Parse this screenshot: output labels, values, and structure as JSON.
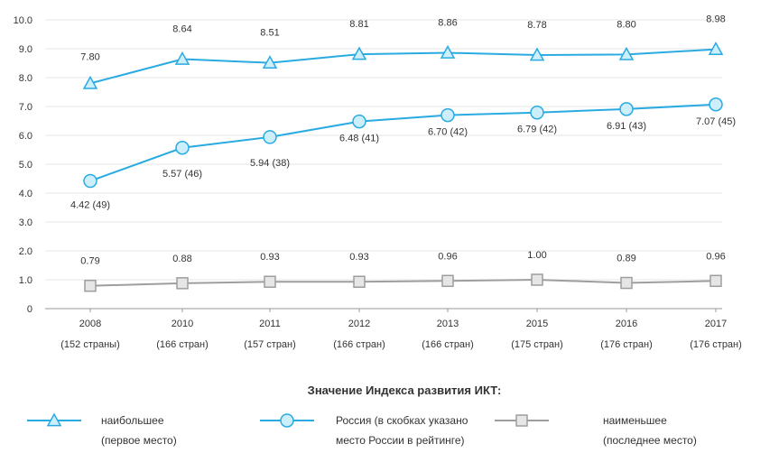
{
  "chart_data": {
    "type": "line",
    "categories": [
      "2008",
      "2010",
      "2011",
      "2012",
      "2013",
      "2015",
      "2016",
      "2017"
    ],
    "category_subtitles": [
      "(152 страны)",
      "(166 стран)",
      "(157 стран)",
      "(166 стран)",
      "(166 стран)",
      "(175 стран)",
      "(176 стран)",
      "(176 стран)"
    ],
    "ylim": [
      0,
      10
    ],
    "yticks": [
      "0",
      "1.0",
      "2.0",
      "3.0",
      "4.0",
      "5.0",
      "6.0",
      "7.0",
      "8.0",
      "9.0",
      "10.0"
    ],
    "ytick_values": [
      0,
      1,
      2,
      3,
      4,
      5,
      6,
      7,
      8,
      9,
      10
    ],
    "grid": true,
    "series": [
      {
        "key": "max",
        "values": [
          7.8,
          8.64,
          8.51,
          8.81,
          8.86,
          8.78,
          8.8,
          8.98
        ],
        "point_labels": [
          "7.80",
          "8.64",
          "8.51",
          "8.81",
          "8.86",
          "8.78",
          "8.80",
          "8.98"
        ],
        "color": "#29abe2",
        "marker": "triangle"
      },
      {
        "key": "russia",
        "values": [
          4.42,
          5.57,
          5.94,
          6.48,
          6.7,
          6.79,
          6.91,
          7.07
        ],
        "point_labels": [
          "4.42 (49)",
          "5.57 (46)",
          "5.94 (38)",
          "6.48 (41)",
          "6.70 (42)",
          "6.79 (42)",
          "6.91 (43)",
          "7.07 (45)"
        ],
        "color": "#29abe2",
        "marker": "circle"
      },
      {
        "key": "min",
        "values": [
          0.79,
          0.88,
          0.93,
          0.93,
          0.96,
          1.0,
          0.89,
          0.96
        ],
        "point_labels": [
          "0.79",
          "0.88",
          "0.93",
          "0.93",
          "0.96",
          "1.00",
          "0.89",
          "0.96"
        ],
        "color": "#9e9e9e",
        "marker": "square"
      }
    ],
    "legend": {
      "title": "Значение Индекса развития ИКТ:",
      "placement": "bottom",
      "entries": [
        {
          "line1": "наибольшее",
          "line2": "(первое место)"
        },
        {
          "line1": "Россия (в скобках указано",
          "line2": "место России в рейтинге)"
        },
        {
          "line1": "наименьшее",
          "line2": "(последнее место)"
        }
      ]
    }
  }
}
